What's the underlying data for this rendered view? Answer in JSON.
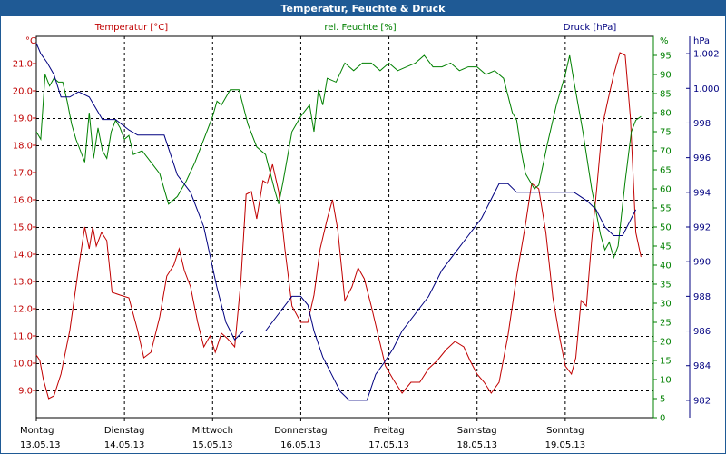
{
  "window_title": "Temperatur, Feuchte & Druck",
  "colors": {
    "temp": "#c00000",
    "hum": "#008000",
    "press": "#000080",
    "title_bg": "#1f5a95"
  },
  "chart_data": {
    "type": "line",
    "title": "Temperatur, Feuchte & Druck",
    "grid": true,
    "x": {
      "range_days": [
        0,
        7
      ],
      "day_labels": [
        {
          "day": "Montag",
          "date": "13.05.13"
        },
        {
          "day": "Dienstag",
          "date": "14.05.13"
        },
        {
          "day": "Mittwoch",
          "date": "15.05.13"
        },
        {
          "day": "Donnerstag",
          "date": "16.05.13"
        },
        {
          "day": "Freitag",
          "date": "17.05.13"
        },
        {
          "day": "Samstag",
          "date": "18.05.13"
        },
        {
          "day": "Sonntag",
          "date": "19.05.13"
        }
      ]
    },
    "axes": {
      "temp": {
        "label": "Temperatur [°C]",
        "unit": "°C",
        "min": 8.0,
        "max": 22.0,
        "ticks": [
          "9.0",
          "10.0",
          "11.0",
          "12.0",
          "13.0",
          "14.0",
          "15.0",
          "16.0",
          "17.0",
          "18.0",
          "19.0",
          "20.0",
          "21.0"
        ]
      },
      "hum": {
        "label": "rel. Feuchte [%]",
        "unit": "%",
        "min": 0,
        "max": 100,
        "ticks": [
          "0",
          "5",
          "10",
          "15",
          "20",
          "25",
          "30",
          "35",
          "40",
          "45",
          "50",
          "55",
          "60",
          "65",
          "70",
          "75",
          "80",
          "85",
          "90",
          "95"
        ]
      },
      "press": {
        "label": "Druck [hPa]",
        "unit": "hPa",
        "min": 981,
        "max": 1003,
        "ticks": [
          "982",
          "984",
          "986",
          "988",
          "990",
          "992",
          "994",
          "996",
          "998",
          "1.000",
          "1.002"
        ]
      }
    },
    "series": [
      {
        "name": "Temperatur [°C]",
        "axis": "temp",
        "points": [
          [
            0.0,
            10.3
          ],
          [
            0.04,
            10.1
          ],
          [
            0.08,
            9.4
          ],
          [
            0.14,
            8.7
          ],
          [
            0.2,
            8.8
          ],
          [
            0.28,
            9.6
          ],
          [
            0.38,
            11.2
          ],
          [
            0.48,
            13.5
          ],
          [
            0.55,
            15.0
          ],
          [
            0.6,
            14.2
          ],
          [
            0.64,
            15.0
          ],
          [
            0.68,
            14.3
          ],
          [
            0.74,
            14.8
          ],
          [
            0.8,
            14.5
          ],
          [
            0.86,
            12.6
          ],
          [
            0.95,
            12.5
          ],
          [
            1.05,
            12.4
          ],
          [
            1.15,
            11.2
          ],
          [
            1.22,
            10.2
          ],
          [
            1.3,
            10.4
          ],
          [
            1.4,
            11.7
          ],
          [
            1.48,
            13.2
          ],
          [
            1.56,
            13.6
          ],
          [
            1.62,
            14.2
          ],
          [
            1.68,
            13.4
          ],
          [
            1.75,
            12.8
          ],
          [
            1.83,
            11.5
          ],
          [
            1.9,
            10.6
          ],
          [
            1.97,
            11.0
          ],
          [
            2.03,
            10.4
          ],
          [
            2.1,
            11.1
          ],
          [
            2.17,
            10.9
          ],
          [
            2.25,
            10.6
          ],
          [
            2.32,
            13.0
          ],
          [
            2.38,
            16.2
          ],
          [
            2.44,
            16.3
          ],
          [
            2.5,
            15.3
          ],
          [
            2.57,
            16.7
          ],
          [
            2.62,
            16.6
          ],
          [
            2.68,
            17.3
          ],
          [
            2.75,
            16.3
          ],
          [
            2.82,
            14.2
          ],
          [
            2.9,
            12.1
          ],
          [
            3.0,
            11.5
          ],
          [
            3.08,
            11.5
          ],
          [
            3.15,
            12.5
          ],
          [
            3.22,
            14.2
          ],
          [
            3.3,
            15.3
          ],
          [
            3.36,
            16.0
          ],
          [
            3.42,
            14.9
          ],
          [
            3.5,
            12.3
          ],
          [
            3.58,
            12.8
          ],
          [
            3.65,
            13.5
          ],
          [
            3.72,
            13.1
          ],
          [
            3.8,
            12.1
          ],
          [
            3.88,
            11.0
          ],
          [
            3.96,
            9.9
          ],
          [
            4.05,
            9.4
          ],
          [
            4.15,
            8.9
          ],
          [
            4.25,
            9.3
          ],
          [
            4.35,
            9.3
          ],
          [
            4.45,
            9.8
          ],
          [
            4.55,
            10.1
          ],
          [
            4.65,
            10.5
          ],
          [
            4.75,
            10.8
          ],
          [
            4.85,
            10.6
          ],
          [
            4.92,
            10.1
          ],
          [
            5.0,
            9.6
          ],
          [
            5.08,
            9.3
          ],
          [
            5.16,
            8.9
          ],
          [
            5.25,
            9.3
          ],
          [
            5.35,
            11.0
          ],
          [
            5.45,
            13.2
          ],
          [
            5.55,
            15.1
          ],
          [
            5.62,
            16.6
          ],
          [
            5.7,
            16.4
          ],
          [
            5.78,
            14.8
          ],
          [
            5.86,
            12.4
          ],
          [
            5.94,
            10.9
          ],
          [
            6.0,
            9.9
          ],
          [
            6.07,
            9.6
          ],
          [
            6.12,
            10.2
          ],
          [
            6.18,
            12.3
          ],
          [
            6.24,
            12.1
          ],
          [
            6.3,
            14.5
          ],
          [
            6.36,
            16.5
          ],
          [
            6.42,
            18.7
          ],
          [
            6.48,
            19.6
          ],
          [
            6.55,
            20.6
          ],
          [
            6.62,
            21.4
          ],
          [
            6.68,
            21.3
          ],
          [
            6.74,
            19.0
          ],
          [
            6.8,
            14.8
          ],
          [
            6.86,
            13.9
          ]
        ]
      },
      {
        "name": "rel. Feuchte [%]",
        "axis": "hum",
        "points": [
          [
            0.0,
            75
          ],
          [
            0.05,
            73
          ],
          [
            0.1,
            90
          ],
          [
            0.15,
            87
          ],
          [
            0.2,
            89
          ],
          [
            0.25,
            88
          ],
          [
            0.3,
            88
          ],
          [
            0.35,
            83
          ],
          [
            0.4,
            77
          ],
          [
            0.45,
            73
          ],
          [
            0.5,
            70
          ],
          [
            0.55,
            67
          ],
          [
            0.6,
            80
          ],
          [
            0.65,
            68
          ],
          [
            0.7,
            76
          ],
          [
            0.75,
            70
          ],
          [
            0.8,
            68
          ],
          [
            0.85,
            75
          ],
          [
            0.9,
            78
          ],
          [
            0.95,
            76
          ],
          [
            1.0,
            73
          ],
          [
            1.05,
            74
          ],
          [
            1.1,
            69
          ],
          [
            1.2,
            70
          ],
          [
            1.3,
            67
          ],
          [
            1.4,
            64
          ],
          [
            1.5,
            56
          ],
          [
            1.6,
            58
          ],
          [
            1.7,
            62
          ],
          [
            1.8,
            67
          ],
          [
            1.9,
            73
          ],
          [
            2.0,
            79
          ],
          [
            2.05,
            83
          ],
          [
            2.1,
            82
          ],
          [
            2.2,
            86
          ],
          [
            2.3,
            86
          ],
          [
            2.4,
            77
          ],
          [
            2.5,
            71
          ],
          [
            2.6,
            69
          ],
          [
            2.7,
            60
          ],
          [
            2.75,
            56
          ],
          [
            2.8,
            62
          ],
          [
            2.9,
            75
          ],
          [
            3.0,
            79
          ],
          [
            3.1,
            82
          ],
          [
            3.15,
            75
          ],
          [
            3.2,
            86
          ],
          [
            3.25,
            82
          ],
          [
            3.3,
            89
          ],
          [
            3.4,
            88
          ],
          [
            3.5,
            93
          ],
          [
            3.6,
            91
          ],
          [
            3.7,
            93
          ],
          [
            3.8,
            93
          ],
          [
            3.9,
            91
          ],
          [
            4.0,
            93
          ],
          [
            4.1,
            91
          ],
          [
            4.2,
            92
          ],
          [
            4.3,
            93
          ],
          [
            4.4,
            95
          ],
          [
            4.5,
            92
          ],
          [
            4.6,
            92
          ],
          [
            4.7,
            93
          ],
          [
            4.8,
            91
          ],
          [
            4.9,
            92
          ],
          [
            5.0,
            92
          ],
          [
            5.1,
            90
          ],
          [
            5.2,
            91
          ],
          [
            5.3,
            89
          ],
          [
            5.4,
            80
          ],
          [
            5.45,
            78
          ],
          [
            5.5,
            70
          ],
          [
            5.55,
            64
          ],
          [
            5.6,
            62
          ],
          [
            5.65,
            60
          ],
          [
            5.7,
            61
          ],
          [
            5.8,
            72
          ],
          [
            5.9,
            82
          ],
          [
            6.0,
            90
          ],
          [
            6.05,
            95
          ],
          [
            6.1,
            88
          ],
          [
            6.2,
            75
          ],
          [
            6.3,
            60
          ],
          [
            6.4,
            48
          ],
          [
            6.45,
            44
          ],
          [
            6.5,
            46
          ],
          [
            6.55,
            42
          ],
          [
            6.6,
            45
          ],
          [
            6.68,
            62
          ],
          [
            6.75,
            75
          ],
          [
            6.8,
            78
          ],
          [
            6.86,
            79
          ]
        ]
      },
      {
        "name": "Druck [hPa]",
        "axis": "press",
        "points": [
          [
            0.0,
            1002.6
          ],
          [
            0.05,
            1002.0
          ],
          [
            0.12,
            1001.5
          ],
          [
            0.2,
            1000.8
          ],
          [
            0.28,
            999.5
          ],
          [
            0.38,
            999.5
          ],
          [
            0.48,
            999.8
          ],
          [
            0.6,
            999.5
          ],
          [
            0.75,
            998.2
          ],
          [
            0.9,
            998.2
          ],
          [
            1.05,
            997.6
          ],
          [
            1.15,
            997.3
          ],
          [
            1.3,
            997.3
          ],
          [
            1.45,
            997.3
          ],
          [
            1.6,
            995.0
          ],
          [
            1.75,
            994.0
          ],
          [
            1.9,
            992.0
          ],
          [
            2.05,
            988.5
          ],
          [
            2.15,
            986.5
          ],
          [
            2.25,
            985.5
          ],
          [
            2.35,
            986.0
          ],
          [
            2.45,
            986.0
          ],
          [
            2.6,
            986.0
          ],
          [
            2.75,
            987.0
          ],
          [
            2.9,
            988.0
          ],
          [
            3.0,
            988.0
          ],
          [
            3.08,
            987.5
          ],
          [
            3.15,
            986.0
          ],
          [
            3.25,
            984.5
          ],
          [
            3.35,
            983.5
          ],
          [
            3.45,
            982.5
          ],
          [
            3.55,
            982.0
          ],
          [
            3.65,
            982.0
          ],
          [
            3.75,
            982.0
          ],
          [
            3.85,
            983.5
          ],
          [
            3.95,
            984.2
          ],
          [
            4.05,
            985.0
          ],
          [
            4.15,
            986.0
          ],
          [
            4.3,
            987.0
          ],
          [
            4.45,
            988.0
          ],
          [
            4.6,
            989.5
          ],
          [
            4.75,
            990.5
          ],
          [
            4.9,
            991.5
          ],
          [
            5.05,
            992.5
          ],
          [
            5.15,
            993.5
          ],
          [
            5.25,
            994.5
          ],
          [
            5.35,
            994.5
          ],
          [
            5.45,
            994.0
          ],
          [
            5.55,
            994.0
          ],
          [
            5.65,
            994.0
          ],
          [
            5.8,
            994.0
          ],
          [
            5.95,
            994.0
          ],
          [
            6.1,
            994.0
          ],
          [
            6.25,
            993.5
          ],
          [
            6.35,
            993.0
          ],
          [
            6.45,
            992.0
          ],
          [
            6.55,
            991.5
          ],
          [
            6.65,
            991.5
          ],
          [
            6.75,
            992.5
          ],
          [
            6.8,
            993.0
          ]
        ]
      }
    ]
  }
}
